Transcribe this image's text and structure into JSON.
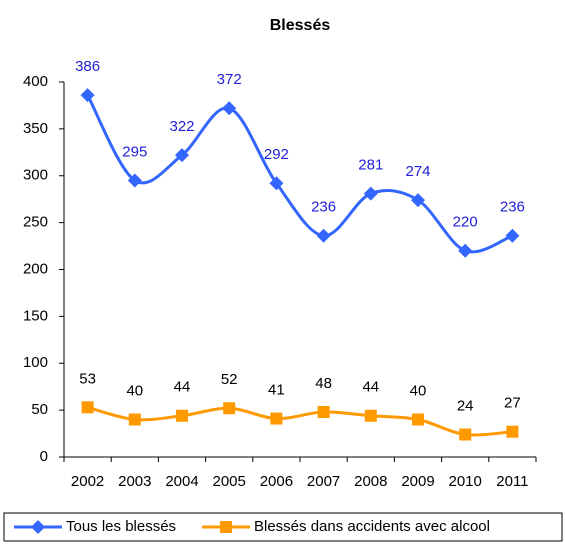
{
  "chart_data": {
    "type": "line",
    "title": "Blessés",
    "categories": [
      "2002",
      "2003",
      "2004",
      "2005",
      "2006",
      "2007",
      "2008",
      "2009",
      "2010",
      "2011"
    ],
    "series": [
      {
        "name": "Tous les blessés",
        "color": "#3366ff",
        "marker": "diamond",
        "label_color": "#1f1fd6",
        "values": [
          386,
          295,
          322,
          372,
          292,
          236,
          281,
          274,
          220,
          236
        ]
      },
      {
        "name": "Blessés dans accidents avec alcool",
        "color": "#ff9900",
        "marker": "square",
        "label_color": "#000000",
        "values": [
          53,
          40,
          44,
          52,
          41,
          48,
          44,
          40,
          24,
          27
        ]
      }
    ],
    "ylim": [
      0,
      400
    ],
    "yticks": [
      0,
      50,
      100,
      150,
      200,
      250,
      300,
      350,
      400
    ],
    "grid": false,
    "smooth": true,
    "legend": "bottom"
  }
}
